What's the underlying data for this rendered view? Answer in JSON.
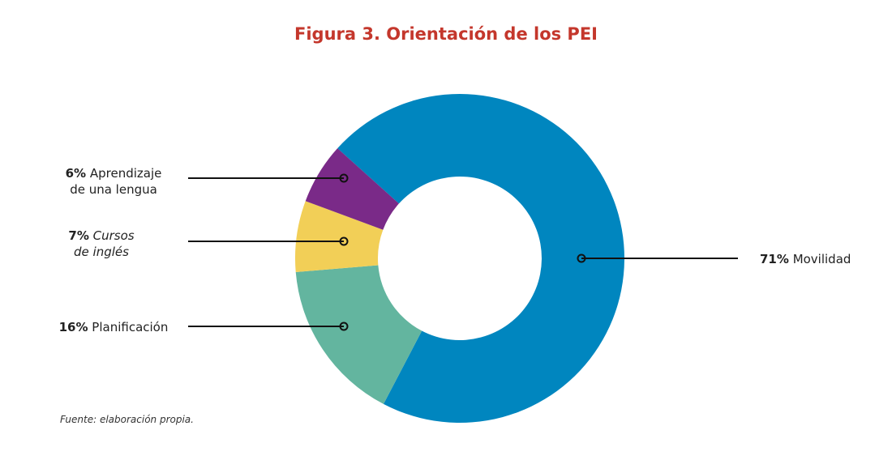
{
  "chart_data": {
    "type": "donut",
    "title": "Figura 3. Orientación de los PEI",
    "categories": [
      "Movilidad",
      "Planificación",
      "Cursos de inglés",
      "Aprendizaje de una lengua"
    ],
    "values": [
      71,
      16,
      7,
      6
    ],
    "value_labels": [
      "71%",
      "16%",
      "7%",
      "6%"
    ],
    "colors": [
      "#0086bf",
      "#63b59f",
      "#f2cf57",
      "#7a2a88"
    ],
    "note": "Fuente: elaboración propia."
  }
}
